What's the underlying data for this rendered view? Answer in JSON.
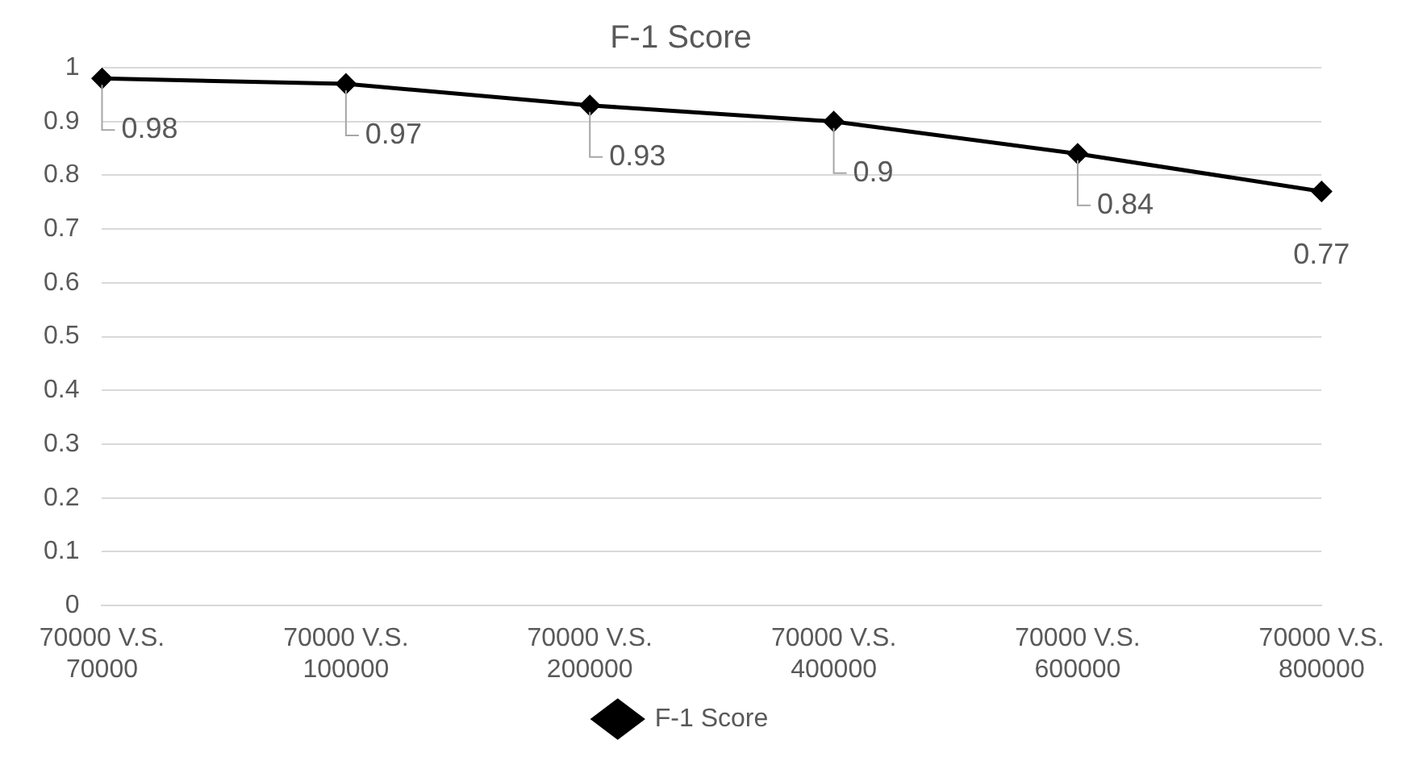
{
  "chart_data": {
    "type": "line",
    "title": "F-1 Score",
    "categories": [
      "70000 V.S. 70000",
      "70000 V.S. 100000",
      "70000 V.S. 200000",
      "70000 V.S. 400000",
      "70000 V.S. 600000",
      "70000 V.S. 800000"
    ],
    "series": [
      {
        "name": "F-1 Score",
        "color": "#000000",
        "values": [
          0.98,
          0.97,
          0.93,
          0.9,
          0.84,
          0.77
        ]
      }
    ],
    "ylim": [
      0,
      1
    ],
    "yticks": [
      0,
      0.1,
      0.2,
      0.3,
      0.4,
      0.5,
      0.6,
      0.7,
      0.8,
      0.9,
      1
    ],
    "grid": "y",
    "legend": "bottom",
    "marker": "diamond",
    "line_style": "solid",
    "data_labels": true
  }
}
